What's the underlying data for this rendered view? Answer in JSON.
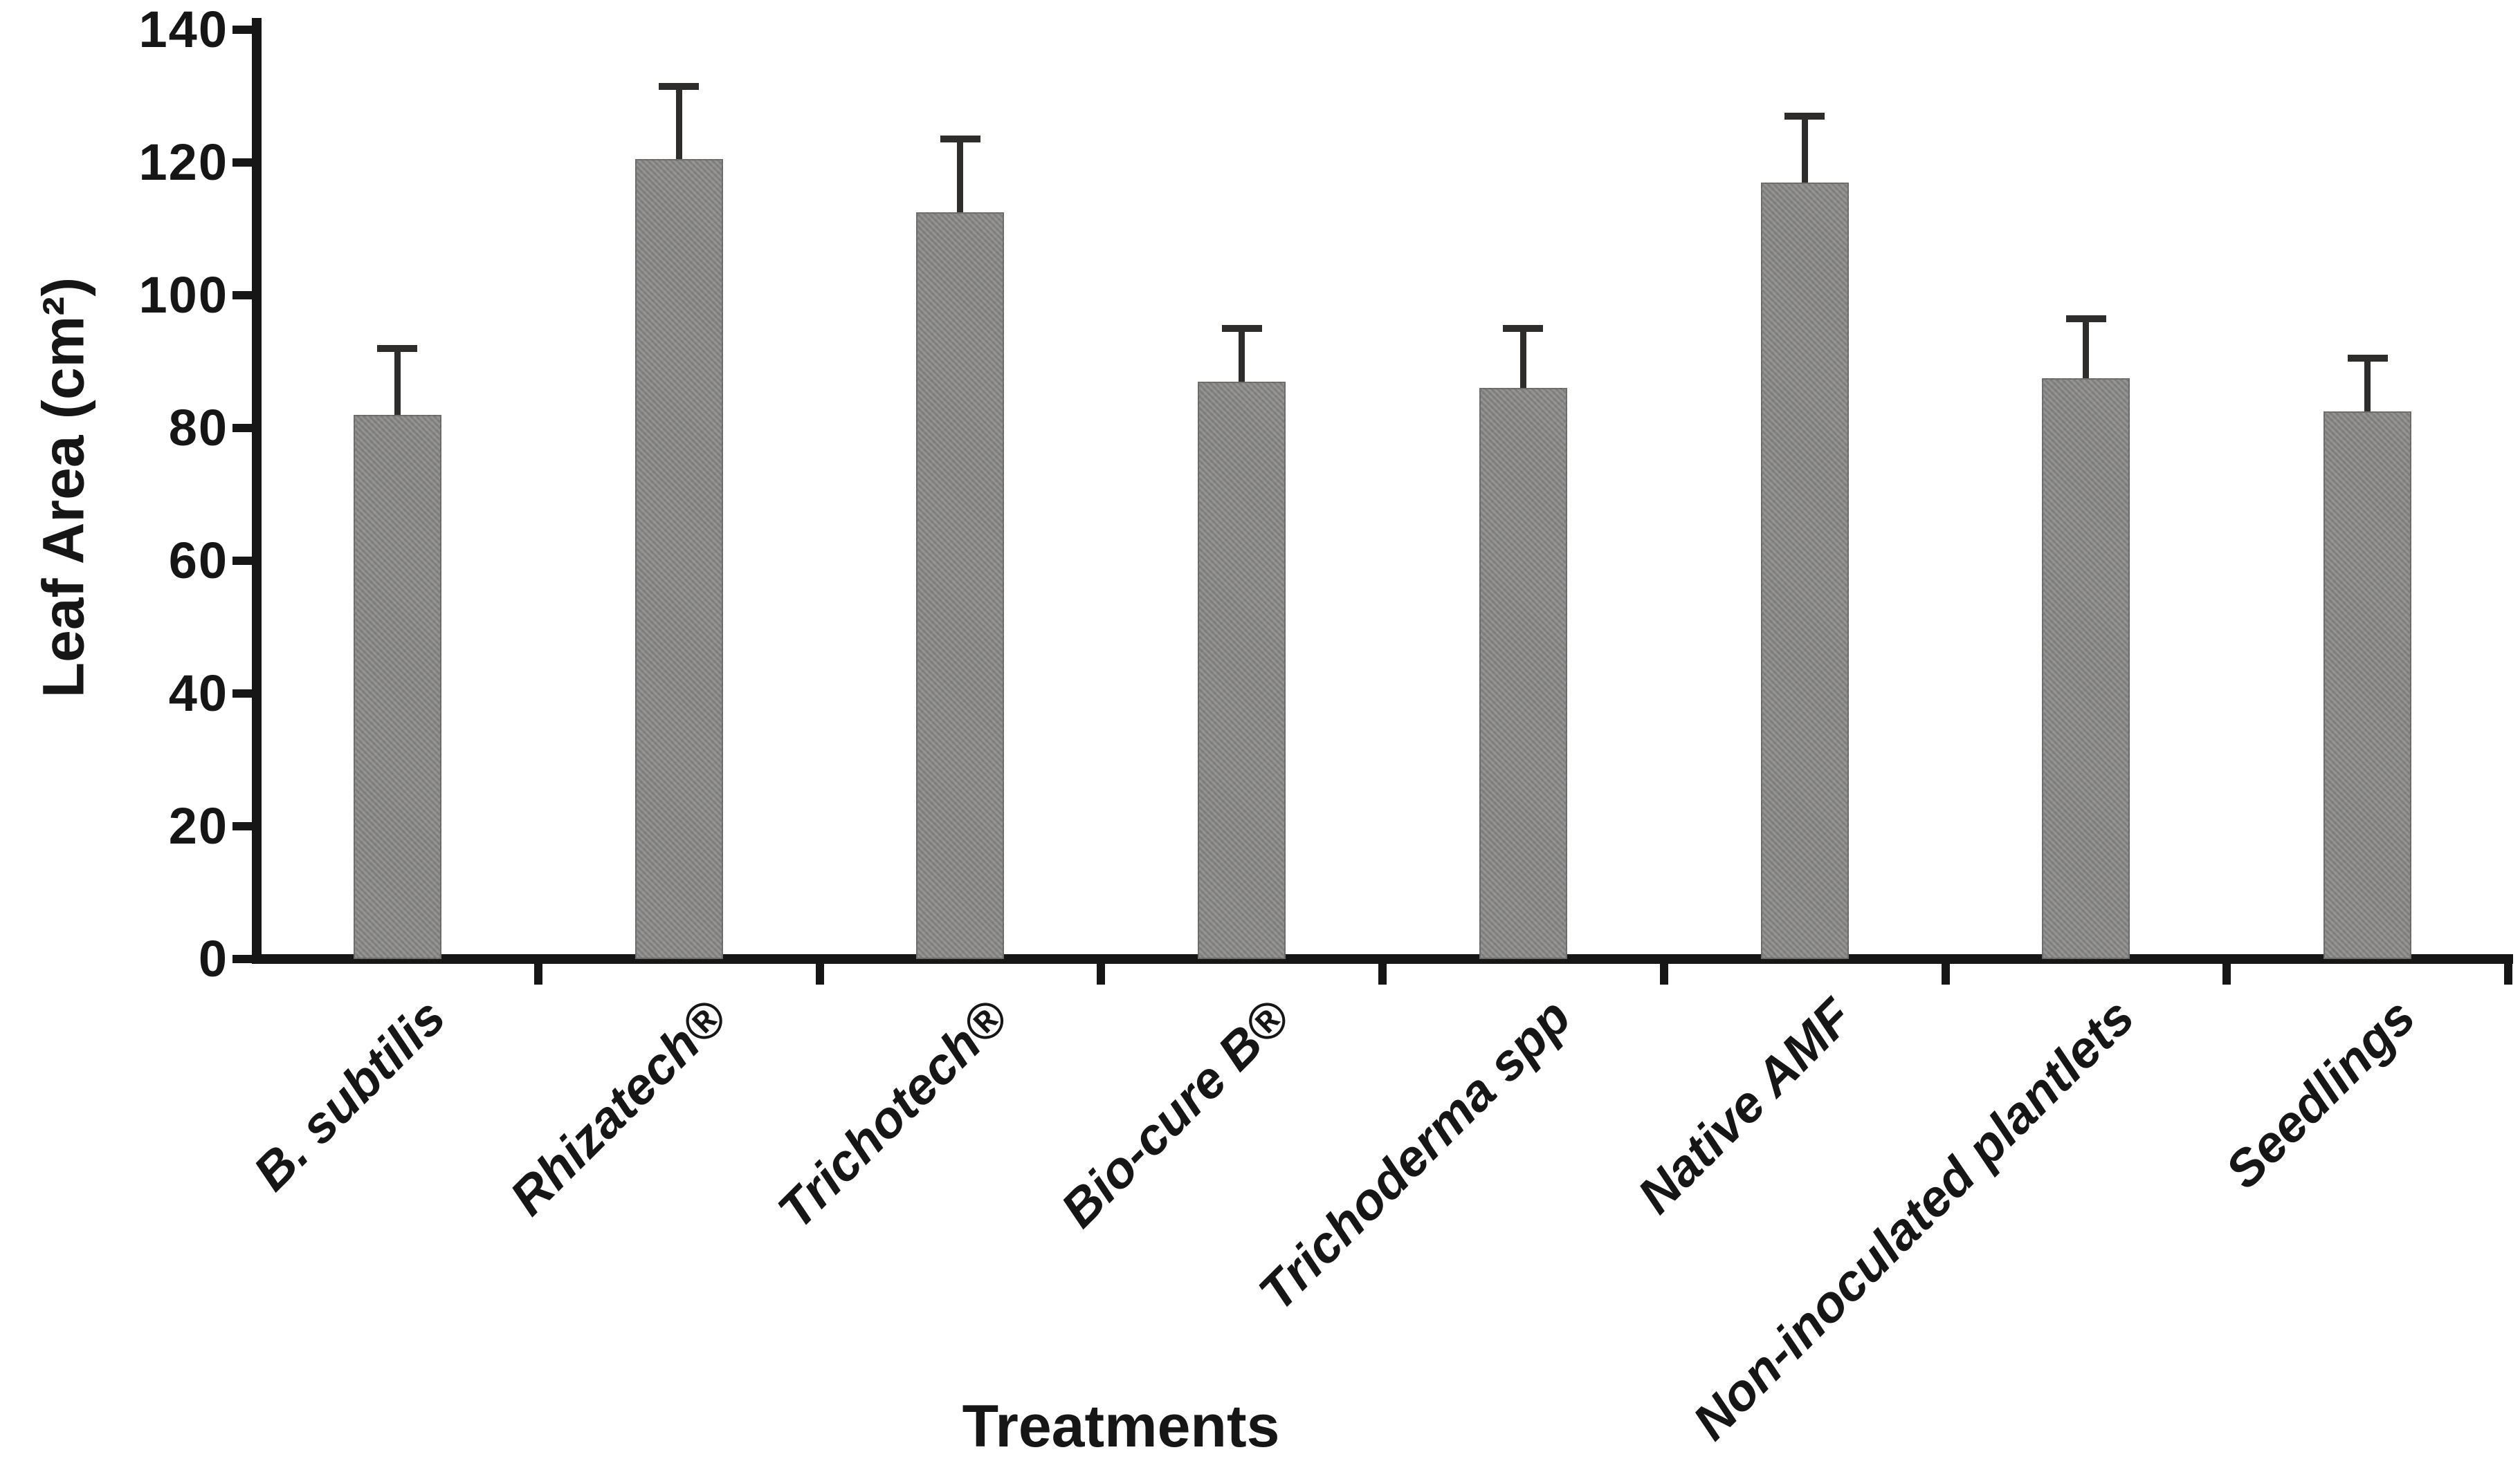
{
  "chart_data": {
    "type": "bar",
    "title": "",
    "xlabel": "Treatments",
    "ylabel": "Leaf Area (cm²)",
    "categories": [
      "B. subtilis",
      "Rhizatech®",
      "Trichotech®",
      "Bio-cure B®",
      "Trichoderma spp",
      "Native AMF",
      "Non-inoculated plantlets",
      "Seedlings"
    ],
    "values": [
      82,
      120.5,
      112.5,
      87,
      86,
      117,
      87.5,
      82.5
    ],
    "errors_plus": [
      10,
      11,
      11,
      8,
      9,
      10,
      9,
      8
    ],
    "ylim": [
      0,
      140
    ],
    "yticks": [
      0,
      20,
      40,
      60,
      80,
      100,
      120,
      140
    ],
    "grid": false,
    "legend": null,
    "bar_color": "#8b8988",
    "axis_color": "#161616",
    "error_color": "#2e2d2c"
  }
}
